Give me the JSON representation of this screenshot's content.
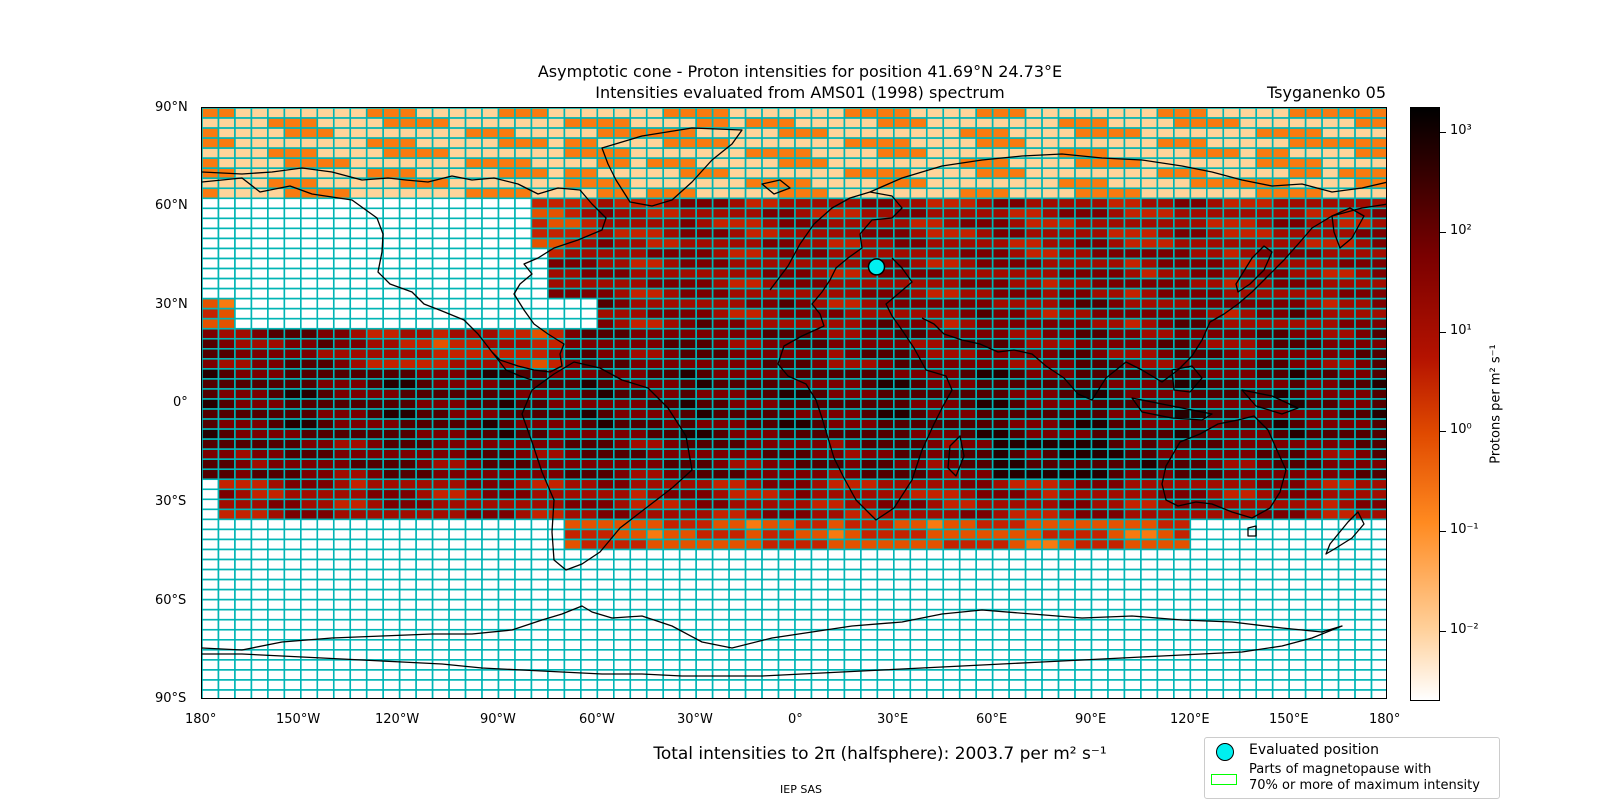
{
  "title_line1": "Asymptotic cone - Proton intensities for position 41.69°N 24.73°E",
  "title_line2": "Intensities evaluated from AMS01 (1998) spectrum",
  "model_label": "Tsyganenko 05",
  "total_intensity_label": "Total intensities to 2π (halfsphere): 2003.7 per m² s⁻¹",
  "footer_label": "IEP SAS",
  "lat_ticks": [
    "90°N",
    "60°N",
    "30°N",
    "0°",
    "30°S",
    "60°S",
    "90°S"
  ],
  "lon_ticks": [
    "180°",
    "150°W",
    "120°W",
    "90°W",
    "60°W",
    "30°W",
    "0°",
    "30°E",
    "60°E",
    "90°E",
    "120°E",
    "150°E",
    "180°"
  ],
  "colorbar": {
    "label": "Protons per m² s⁻¹",
    "scale": "log",
    "ticks": [
      "10³",
      "10²",
      "10¹",
      "10⁰",
      "10⁻¹",
      "10⁻²"
    ],
    "tick_exponents": [
      3,
      2,
      1,
      0,
      -1,
      -2
    ],
    "range_exp": [
      -2.7,
      3.25
    ]
  },
  "legend": {
    "evaluated_position": "Evaluated position",
    "magnetopause_line1": "Parts of magnetopause with",
    "magnetopause_line2": "70% or more of maximum intensity"
  },
  "colors": {
    "grid": "#00b5b5",
    "marker": "#00f0f0",
    "magnetopause": "#00ff00",
    "no_data": "#ffffff"
  },
  "evaluated_position": {
    "lat": 41.69,
    "lon": 24.73
  }
}
